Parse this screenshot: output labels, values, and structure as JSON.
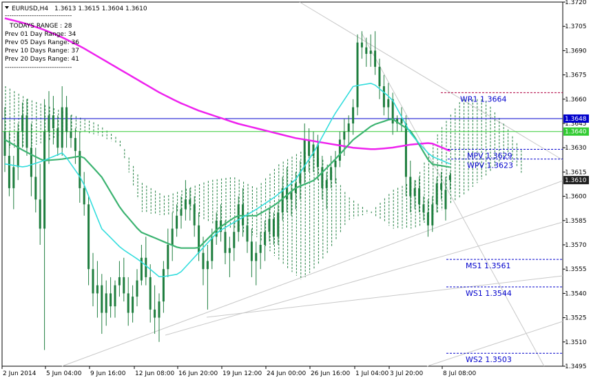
{
  "header": {
    "symbol": "EURUSD,H4",
    "ohlc": "1.3613 1.3615 1.3604 1.3610"
  },
  "info_panel": {
    "separator": "------------------------------",
    "lines": [
      "TODAYS RANGE   : 28",
      "Prev 01  Day  Range: 34",
      "Prev 05  Days Range: 36",
      "Prev 10  Days Range: 37",
      "Prev 20  Days Range: 41"
    ]
  },
  "colors": {
    "candle": "#1e7e3e",
    "ma_slow": "#ee22ee",
    "ma_mid": "#3cb371",
    "ma_fast": "#33dddd",
    "cloud_bear": "#c2185b",
    "cloud_bull": "#1e7e3e",
    "pivot": "#0000cc",
    "wr1_line": "#b00040",
    "support_line": "#0000cc",
    "hline_blue": "#0000cc",
    "hline_green": "#33cc33",
    "current_price_bg": "#202020"
  },
  "chart_data": {
    "type": "candlestick",
    "symbol": "EURUSD",
    "timeframe": "H4",
    "ylim": [
      1.3495,
      1.372
    ],
    "y_ticks": [
      "1.3720",
      "1.3705",
      "1.3690",
      "1.3675",
      "1.3660",
      "1.3645",
      "1.3630",
      "1.3615",
      "1.3600",
      "1.3585",
      "1.3570",
      "1.3555",
      "1.3540",
      "1.3525",
      "1.3510",
      "1.3495"
    ],
    "x_labels": [
      "2 Jun 2014",
      "5 Jun 04:00",
      "9 Jun 16:00",
      "12 Jun 08:00",
      "16 Jun 20:00",
      "19 Jun 12:00",
      "24 Jun 00:00",
      "26 Jun 16:00",
      "1 Jul 04:00",
      "3 Jul 20:00",
      "8 Jul 08:00"
    ],
    "price_marks": [
      {
        "label": "1.3648",
        "value": 1.3648,
        "color": "#0000cc"
      },
      {
        "label": "1.3640",
        "value": 1.364,
        "color": "#33cc33"
      },
      {
        "label": "1.3610",
        "value": 1.361,
        "color": "#202020"
      }
    ],
    "pivots": [
      {
        "name": "WR1",
        "label": "WR1  1.3664",
        "value": 1.3664
      },
      {
        "name": "MPV",
        "label": "MPV  1.3629",
        "value": 1.3629
      },
      {
        "name": "WPV",
        "label": "WPV  1.3623",
        "value": 1.3623
      },
      {
        "name": "MS1",
        "label": "MS1  1.3561",
        "value": 1.3561
      },
      {
        "name": "WS1",
        "label": "WS1  1.3544",
        "value": 1.3544
      },
      {
        "name": "WS2",
        "label": "WS2  1.3503",
        "value": 1.3503
      }
    ],
    "candles": [
      [
        1.364,
        1.3655,
        1.3615,
        1.3625
      ],
      [
        1.3625,
        1.364,
        1.36,
        1.3605
      ],
      [
        1.3605,
        1.3625,
        1.3592,
        1.3618
      ],
      [
        1.3618,
        1.3645,
        1.361,
        1.364
      ],
      [
        1.364,
        1.3658,
        1.363,
        1.365
      ],
      [
        1.365,
        1.366,
        1.3625,
        1.363
      ],
      [
        1.363,
        1.3645,
        1.36,
        1.3612
      ],
      [
        1.3612,
        1.363,
        1.359,
        1.3598
      ],
      [
        1.3598,
        1.362,
        1.357,
        1.358
      ],
      [
        1.358,
        1.366,
        1.3505,
        1.364
      ],
      [
        1.364,
        1.3665,
        1.362,
        1.365
      ],
      [
        1.365,
        1.3662,
        1.3632,
        1.3642
      ],
      [
        1.3642,
        1.365,
        1.3625,
        1.363
      ],
      [
        1.363,
        1.3668,
        1.3625,
        1.3655
      ],
      [
        1.3655,
        1.3662,
        1.363,
        1.364
      ],
      [
        1.364,
        1.365,
        1.363,
        1.3636
      ],
      [
        1.3636,
        1.3642,
        1.362,
        1.3628
      ],
      [
        1.3628,
        1.364,
        1.3596,
        1.3605
      ],
      [
        1.3605,
        1.3615,
        1.3588,
        1.3595
      ],
      [
        1.3595,
        1.36,
        1.3545,
        1.3555
      ],
      [
        1.3555,
        1.3565,
        1.3532,
        1.354
      ],
      [
        1.354,
        1.356,
        1.3525,
        1.3545
      ],
      [
        1.3545,
        1.3552,
        1.3515,
        1.3528
      ],
      [
        1.3528,
        1.3548,
        1.352,
        1.354
      ],
      [
        1.354,
        1.355,
        1.3525,
        1.3532
      ],
      [
        1.3532,
        1.3548,
        1.3525,
        1.3545
      ],
      [
        1.3545,
        1.356,
        1.3538,
        1.355
      ],
      [
        1.355,
        1.3562,
        1.3535,
        1.354
      ],
      [
        1.354,
        1.355,
        1.352,
        1.3528
      ],
      [
        1.3528,
        1.3545,
        1.3522,
        1.3538
      ],
      [
        1.3538,
        1.3555,
        1.3532,
        1.3548
      ],
      [
        1.3548,
        1.357,
        1.3545,
        1.3562
      ],
      [
        1.3562,
        1.3575,
        1.3545,
        1.355
      ],
      [
        1.355,
        1.3558,
        1.3522,
        1.353
      ],
      [
        1.353,
        1.3545,
        1.3515,
        1.3525
      ],
      [
        1.3525,
        1.354,
        1.351,
        1.3535
      ],
      [
        1.3535,
        1.356,
        1.3528,
        1.3555
      ],
      [
        1.3555,
        1.358,
        1.355,
        1.357
      ],
      [
        1.357,
        1.359,
        1.356,
        1.358
      ],
      [
        1.358,
        1.3595,
        1.3575,
        1.3588
      ],
      [
        1.3588,
        1.36,
        1.358,
        1.3592
      ],
      [
        1.3592,
        1.361,
        1.3585,
        1.3598
      ],
      [
        1.3598,
        1.3605,
        1.3585,
        1.3595
      ],
      [
        1.3595,
        1.36,
        1.3575,
        1.3582
      ],
      [
        1.3582,
        1.359,
        1.356,
        1.3565
      ],
      [
        1.3565,
        1.3575,
        1.3545,
        1.3555
      ],
      [
        1.3555,
        1.357,
        1.353,
        1.356
      ],
      [
        1.356,
        1.358,
        1.3555,
        1.3575
      ],
      [
        1.3575,
        1.359,
        1.357,
        1.3585
      ],
      [
        1.3585,
        1.3595,
        1.3572,
        1.3578
      ],
      [
        1.3578,
        1.3585,
        1.3558,
        1.3565
      ],
      [
        1.3565,
        1.3575,
        1.355,
        1.3568
      ],
      [
        1.3568,
        1.3585,
        1.356,
        1.3578
      ],
      [
        1.3578,
        1.36,
        1.3572,
        1.3595
      ],
      [
        1.3595,
        1.3605,
        1.3575,
        1.3582
      ],
      [
        1.3582,
        1.359,
        1.3565,
        1.3572
      ],
      [
        1.3572,
        1.358,
        1.355,
        1.356
      ],
      [
        1.356,
        1.3572,
        1.3545,
        1.3565
      ],
      [
        1.3565,
        1.3578,
        1.3555,
        1.357
      ],
      [
        1.357,
        1.3585,
        1.356,
        1.3578
      ],
      [
        1.3578,
        1.3592,
        1.3572,
        1.3586
      ],
      [
        1.3586,
        1.359,
        1.357,
        1.3575
      ],
      [
        1.3575,
        1.3595,
        1.357,
        1.359
      ],
      [
        1.359,
        1.3612,
        1.3585,
        1.3605
      ],
      [
        1.3605,
        1.3618,
        1.359,
        1.3598
      ],
      [
        1.3598,
        1.361,
        1.3588,
        1.3602
      ],
      [
        1.3602,
        1.3615,
        1.3592,
        1.3608
      ],
      [
        1.3608,
        1.3622,
        1.3598,
        1.3615
      ],
      [
        1.3615,
        1.3645,
        1.3608,
        1.3635
      ],
      [
        1.3635,
        1.3642,
        1.3615,
        1.3625
      ],
      [
        1.3625,
        1.364,
        1.3615,
        1.3632
      ],
      [
        1.3632,
        1.3638,
        1.361,
        1.3618
      ],
      [
        1.3618,
        1.3625,
        1.3598,
        1.3605
      ],
      [
        1.3605,
        1.3615,
        1.3592,
        1.361
      ],
      [
        1.361,
        1.3625,
        1.3605,
        1.3618
      ],
      [
        1.3618,
        1.3628,
        1.3608,
        1.3622
      ],
      [
        1.3622,
        1.364,
        1.3618,
        1.3635
      ],
      [
        1.3635,
        1.3648,
        1.3625,
        1.364
      ],
      [
        1.364,
        1.365,
        1.3632,
        1.3645
      ],
      [
        1.3645,
        1.366,
        1.3638,
        1.3655
      ],
      [
        1.3655,
        1.37,
        1.365,
        1.3695
      ],
      [
        1.3695,
        1.3702,
        1.3685,
        1.3692
      ],
      [
        1.3692,
        1.3698,
        1.368,
        1.3688
      ],
      [
        1.3688,
        1.37,
        1.368,
        1.369
      ],
      [
        1.369,
        1.3702,
        1.3675,
        1.368
      ],
      [
        1.368,
        1.3685,
        1.366,
        1.3668
      ],
      [
        1.3668,
        1.3675,
        1.365,
        1.3655
      ],
      [
        1.3655,
        1.367,
        1.3648,
        1.366
      ],
      [
        1.366,
        1.3664,
        1.3638,
        1.3645
      ],
      [
        1.3645,
        1.365,
        1.364,
        1.3648
      ],
      [
        1.3648,
        1.3655,
        1.364,
        1.3645
      ],
      [
        1.3645,
        1.365,
        1.36,
        1.3612
      ],
      [
        1.3612,
        1.3622,
        1.359,
        1.36
      ],
      [
        1.36,
        1.361,
        1.3592,
        1.3605
      ],
      [
        1.3605,
        1.3612,
        1.359,
        1.3595
      ],
      [
        1.3595,
        1.36,
        1.3585,
        1.359
      ],
      [
        1.359,
        1.3598,
        1.3575,
        1.3582
      ],
      [
        1.3582,
        1.36,
        1.3578,
        1.3595
      ],
      [
        1.3595,
        1.3612,
        1.359,
        1.3608
      ],
      [
        1.3608,
        1.3615,
        1.3598,
        1.3604
      ],
      [
        1.3604,
        1.3612,
        1.3585,
        1.3592
      ],
      [
        1.3613,
        1.3615,
        1.3604,
        1.361
      ]
    ],
    "ma_slow": [
      1.371,
      1.3707,
      1.3703,
      1.3698,
      1.3692,
      1.3685,
      1.3678,
      1.3671,
      1.3664,
      1.3658,
      1.3653,
      1.3649,
      1.3645,
      1.3642,
      1.3639,
      1.3636,
      1.3634,
      1.3632,
      1.363,
      1.3629,
      1.363,
      1.3632,
      1.3633,
      1.3628
    ],
    "ma_mid": [
      1.3635,
      1.3628,
      1.3622,
      1.3623,
      1.3625,
      1.3612,
      1.3592,
      1.3578,
      1.3573,
      1.3568,
      1.3568,
      1.358,
      1.3588,
      1.3588,
      1.3595,
      1.3605,
      1.361,
      1.3622,
      1.3635,
      1.3644,
      1.3648,
      1.364,
      1.362,
      1.3618
    ],
    "ma_fast": [
      1.362,
      1.3618,
      1.3622,
      1.3627,
      1.361,
      1.358,
      1.3568,
      1.356,
      1.355,
      1.3552,
      1.3565,
      1.3578,
      1.3585,
      1.3592,
      1.36,
      1.361,
      1.3628,
      1.365,
      1.3668,
      1.367,
      1.366,
      1.3638,
      1.3625,
      1.362
    ]
  }
}
